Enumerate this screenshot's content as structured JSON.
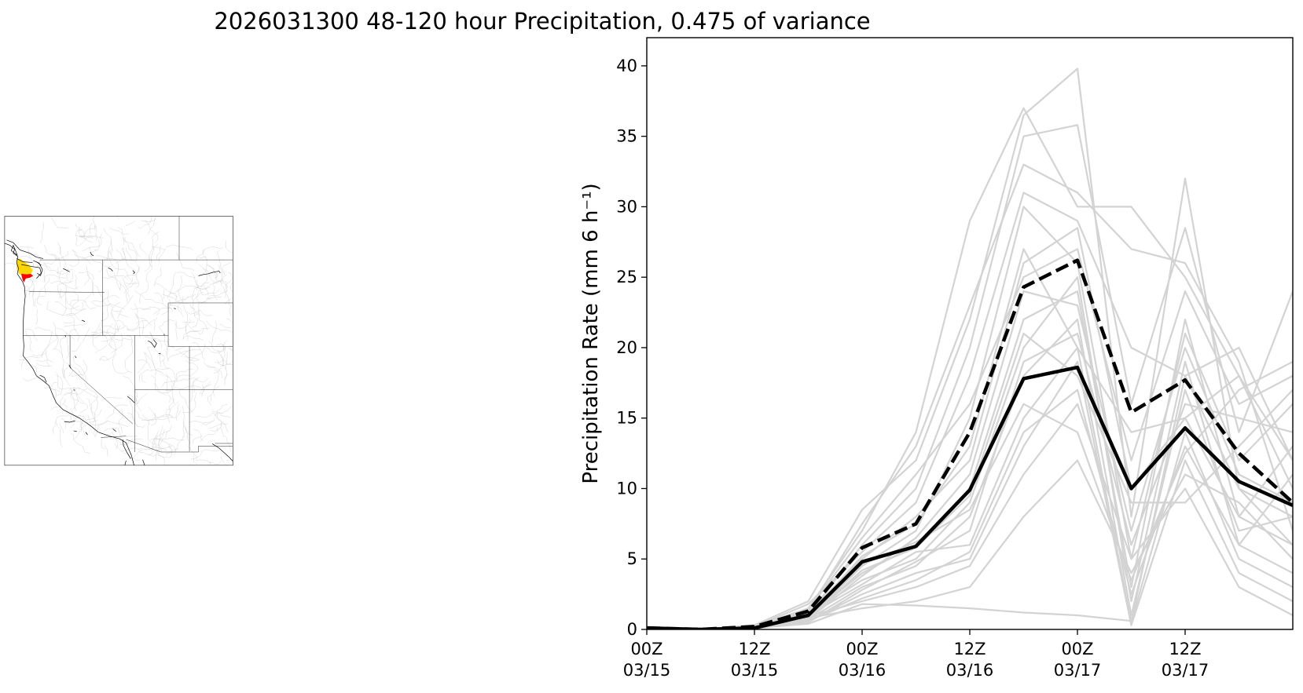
{
  "figure": {
    "title": "2026031300 48-120 hour Precipitation, 0.475 of variance"
  },
  "map": {
    "highlight_colors": {
      "primary": "#ff0000",
      "secondary": "#ffd700"
    },
    "border_color": "#000000",
    "basin_color": "#c8c8c8"
  },
  "chart_data": {
    "type": "line",
    "title": "2026031300 48-120 hour Precipitation, 0.475 of variance",
    "xlabel": "",
    "ylabel": "Precipitation Rate (mm 6 h⁻¹)",
    "ylim": [
      0,
      42
    ],
    "xlim": [
      0,
      72
    ],
    "x": [
      0,
      6,
      12,
      18,
      24,
      30,
      36,
      42,
      48,
      54,
      60,
      66,
      72
    ],
    "xticks": [
      {
        "x": 0,
        "label": "00Z\n03/15"
      },
      {
        "x": 12,
        "label": "12Z\n03/15"
      },
      {
        "x": 24,
        "label": "00Z\n03/16"
      },
      {
        "x": 36,
        "label": "12Z\n03/16"
      },
      {
        "x": 48,
        "label": "00Z\n03/17"
      },
      {
        "x": 60,
        "label": "12Z\n03/17"
      }
    ],
    "yticks": [
      0,
      5,
      10,
      15,
      20,
      25,
      30,
      35,
      40
    ],
    "grid": false,
    "legend": null,
    "colors": {
      "members": "#d3d3d3",
      "mean": "#000000",
      "upper": "#000000"
    },
    "series": [
      {
        "name": "ensemble mean",
        "style": "solid",
        "values": [
          0.1,
          0.0,
          0.1,
          1.0,
          4.8,
          5.9,
          9.9,
          17.8,
          18.6,
          10.0,
          14.3,
          10.5,
          8.8
        ]
      },
      {
        "name": "upper",
        "style": "dashed",
        "values": [
          0.1,
          0.0,
          0.2,
          1.3,
          5.8,
          7.5,
          14.0,
          24.3,
          26.2,
          15.4,
          17.7,
          12.5,
          9.0
        ]
      }
    ],
    "members": [
      [
        0.2,
        0.0,
        0.3,
        2.0,
        8.5,
        12.0,
        22.0,
        36.5,
        39.8,
        8.0,
        32.0,
        10.0,
        8.0
      ],
      [
        0.1,
        0.0,
        0.2,
        1.5,
        7.0,
        14.0,
        29.0,
        37.0,
        30.0,
        30.0,
        25.0,
        18.0,
        12.0
      ],
      [
        0.0,
        0.0,
        0.1,
        1.0,
        6.0,
        10.0,
        20.0,
        35.0,
        35.8,
        16.0,
        28.5,
        14.0,
        24.0
      ],
      [
        0.1,
        0.0,
        0.2,
        1.8,
        5.5,
        9.0,
        18.0,
        31.0,
        29.0,
        20.0,
        18.0,
        20.0,
        12.0
      ],
      [
        0.0,
        0.0,
        0.1,
        0.8,
        4.5,
        7.0,
        15.0,
        30.0,
        26.0,
        5.0,
        21.0,
        12.0,
        16.0
      ],
      [
        0.1,
        0.0,
        0.2,
        1.2,
        5.0,
        8.0,
        12.0,
        26.0,
        28.5,
        10.0,
        15.0,
        18.0,
        10.0
      ],
      [
        0.0,
        0.0,
        0.1,
        0.9,
        4.0,
        6.0,
        10.0,
        22.0,
        24.0,
        3.0,
        22.0,
        8.0,
        6.0
      ],
      [
        0.1,
        0.0,
        0.1,
        1.1,
        3.5,
        5.0,
        9.0,
        20.0,
        25.0,
        2.0,
        19.0,
        6.0,
        4.0
      ],
      [
        0.0,
        0.0,
        0.1,
        0.7,
        3.0,
        4.5,
        8.0,
        18.0,
        22.0,
        1.0,
        17.0,
        7.0,
        8.0
      ],
      [
        0.1,
        0.0,
        0.2,
        1.0,
        3.2,
        5.5,
        6.0,
        15.0,
        20.0,
        0.5,
        14.0,
        5.0,
        3.0
      ],
      [
        0.0,
        0.0,
        0.1,
        0.6,
        2.5,
        4.0,
        5.0,
        13.0,
        19.0,
        0.3,
        12.0,
        4.0,
        2.0
      ],
      [
        0.1,
        0.0,
        0.1,
        0.9,
        2.0,
        3.0,
        4.5,
        11.0,
        16.0,
        5.0,
        10.0,
        3.0,
        1.0
      ],
      [
        0.0,
        0.0,
        0.2,
        0.8,
        1.5,
        2.0,
        3.0,
        8.0,
        12.0,
        4.0,
        11.0,
        9.0,
        5.0
      ],
      [
        0.1,
        0.0,
        0.1,
        0.5,
        2.8,
        4.8,
        7.0,
        19.0,
        21.0,
        6.0,
        16.0,
        15.0,
        14.0
      ],
      [
        0.0,
        0.0,
        0.1,
        0.7,
        3.8,
        6.5,
        11.0,
        24.0,
        23.0,
        7.0,
        20.0,
        11.0,
        9.0
      ],
      [
        0.1,
        0.0,
        0.2,
        1.4,
        6.5,
        11.0,
        16.0,
        25.0,
        27.0,
        12.0,
        24.0,
        16.0,
        18.0
      ],
      [
        0.0,
        0.0,
        0.1,
        1.3,
        7.5,
        13.0,
        23.0,
        33.0,
        31.0,
        27.0,
        26.0,
        19.0,
        7.0
      ],
      [
        0.1,
        0.0,
        0.2,
        0.6,
        2.2,
        3.5,
        5.5,
        14.0,
        17.0,
        2.5,
        13.0,
        6.0,
        11.0
      ],
      [
        0.0,
        0.0,
        0.1,
        0.4,
        1.8,
        1.7,
        1.5,
        1.2,
        1.0,
        0.6,
        18.0,
        10.0,
        6.0
      ],
      [
        0.1,
        0.0,
        0.1,
        0.8,
        4.2,
        5.8,
        9.5,
        21.0,
        18.0,
        9.0,
        9.0,
        13.0,
        17.0
      ],
      [
        0.0,
        0.0,
        0.1,
        1.0,
        5.2,
        7.5,
        13.0,
        27.0,
        20.0,
        14.0,
        15.0,
        8.0,
        13.0
      ],
      [
        0.1,
        0.0,
        0.2,
        1.1,
        4.6,
        6.2,
        8.5,
        16.0,
        14.0,
        3.5,
        12.5,
        17.0,
        19.0
      ]
    ]
  }
}
